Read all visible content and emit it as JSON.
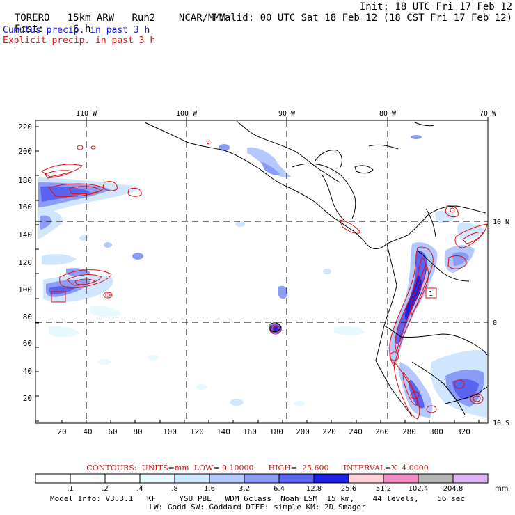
{
  "header": {
    "model": "TORERO",
    "resolution": "15km ARW",
    "run": "Run2",
    "center": "NCAR/MMM",
    "fcst_label": "Fcst:",
    "fcst_value": "6 h",
    "init": "Init: 18 UTC Fri 17 Feb 12",
    "valid": "Valid: 00 UTC Sat 18 Feb 12 (18 CST Fri 17 Feb 12)",
    "field1": "Cumulus precip. in past 3 h",
    "field2": "Explicit precip. in past 3 h"
  },
  "colors": {
    "cumulus_label": "#1a1ad6",
    "explicit_label": "#e01010",
    "contour": "#e01010",
    "coast": "#000000"
  },
  "map": {
    "top_lon_labels": [
      "110 W",
      "100 W",
      "90 W",
      "80 W",
      "70 W"
    ],
    "right_lat_labels": [
      "10 N",
      "0",
      "10 S"
    ],
    "y_ticks": [
      "220",
      "200",
      "180",
      "160",
      "140",
      "120",
      "100",
      "80",
      "60",
      "40",
      "20"
    ],
    "x_ticks": [
      "20",
      "40",
      "60",
      "80",
      "100",
      "120",
      "140",
      "160",
      "180",
      "200",
      "220",
      "240",
      "260",
      "280",
      "300",
      "320"
    ],
    "box_marker_label": "1"
  },
  "contours": {
    "text": "CONTOURS:  UNITS=mm  LOW= 0.10000      HIGH=  25.600      INTERVAL=X  4.0000"
  },
  "colorbar": {
    "unit": "mm",
    "levels": [
      ".1",
      ".2",
      ".4",
      ".8",
      "1.6",
      "3.2",
      "6.4",
      "12.8",
      "25.6",
      "51.2",
      "102.4",
      "204.8"
    ],
    "colors": [
      "#ffffff",
      "#ffffff",
      "#ffffff",
      "#e8f8ff",
      "#d0e6ff",
      "#b4c8ff",
      "#8a9cf6",
      "#5a64f0",
      "#1e22e0",
      "#ffd0d8",
      "#f08cc4",
      "#b4b4b4",
      "#dcb4f4"
    ]
  },
  "footer": {
    "line1": "Model Info: V3.3.1   KF     YSU PBL   WDM 6class  Noah LSM  15 km,    44 levels,    56 sec",
    "line2": "LW: Godd SW: Goddard DIFF: simple KM: 2D Smagor"
  }
}
